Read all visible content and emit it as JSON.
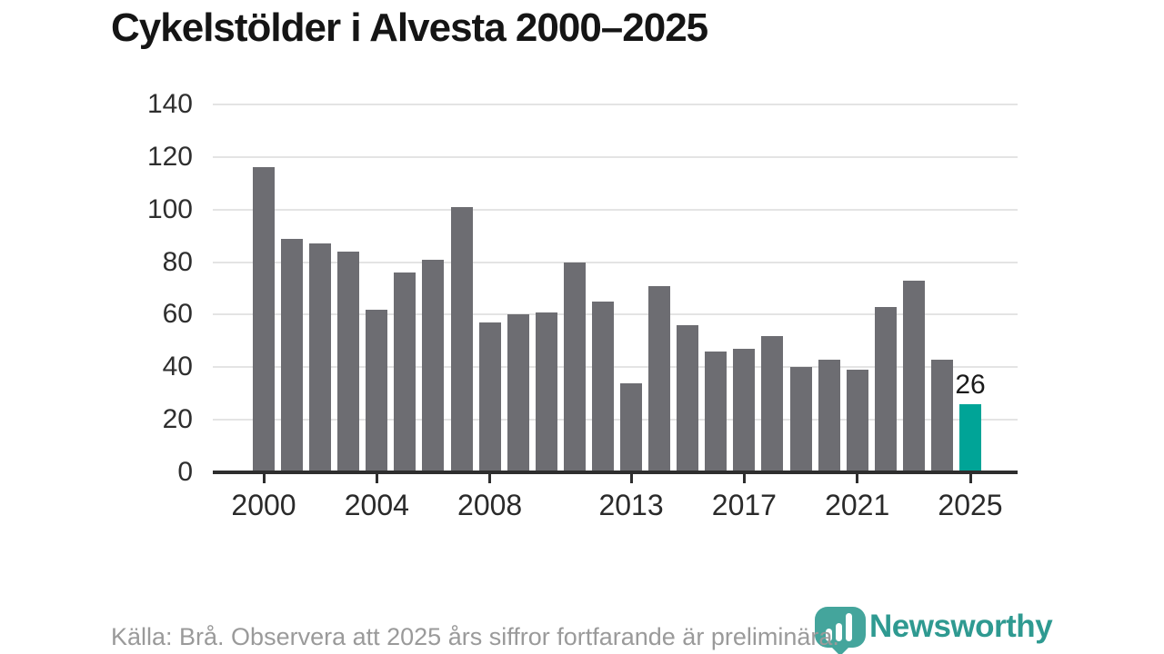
{
  "title": "Cykelstölder i Alvesta 2000–2025",
  "footer": {
    "source_note": "Källa: Brå. Observera att 2025 års siffror fortfarande är preliminära."
  },
  "branding": {
    "wordmark": "Newsworthy",
    "wordmark_color": "#2f9a91",
    "icon": "newsworthy-bubble-barchart-icon",
    "icon_color": "#44a59c"
  },
  "chart_data": {
    "type": "bar",
    "x": [
      2000,
      2001,
      2002,
      2003,
      2004,
      2005,
      2006,
      2007,
      2008,
      2009,
      2010,
      2011,
      2012,
      2013,
      2014,
      2015,
      2016,
      2017,
      2018,
      2019,
      2020,
      2021,
      2022,
      2023,
      2024,
      2025
    ],
    "values": [
      116,
      89,
      87,
      84,
      62,
      76,
      81,
      101,
      57,
      60,
      61,
      80,
      65,
      34,
      71,
      56,
      46,
      47,
      52,
      40,
      43,
      39,
      63,
      73,
      43,
      26
    ],
    "title": "Cykelstölder i Alvesta 2000–2025",
    "xlabel": "",
    "ylabel": "",
    "ylim": [
      0,
      140
    ],
    "y_ticks": [
      0,
      20,
      40,
      60,
      80,
      100,
      120,
      140
    ],
    "x_tick_years": [
      2000,
      2004,
      2008,
      2013,
      2017,
      2021,
      2025
    ],
    "x_tick_labels": [
      "2000",
      "2004",
      "2008",
      "2013",
      "2017",
      "2021",
      "2025"
    ],
    "grid": "horizontal",
    "legend": "none",
    "bar_color": "#6d6d72",
    "highlight_year": 2025,
    "highlight_color": "#00a497",
    "highlight_value_label": "26"
  }
}
